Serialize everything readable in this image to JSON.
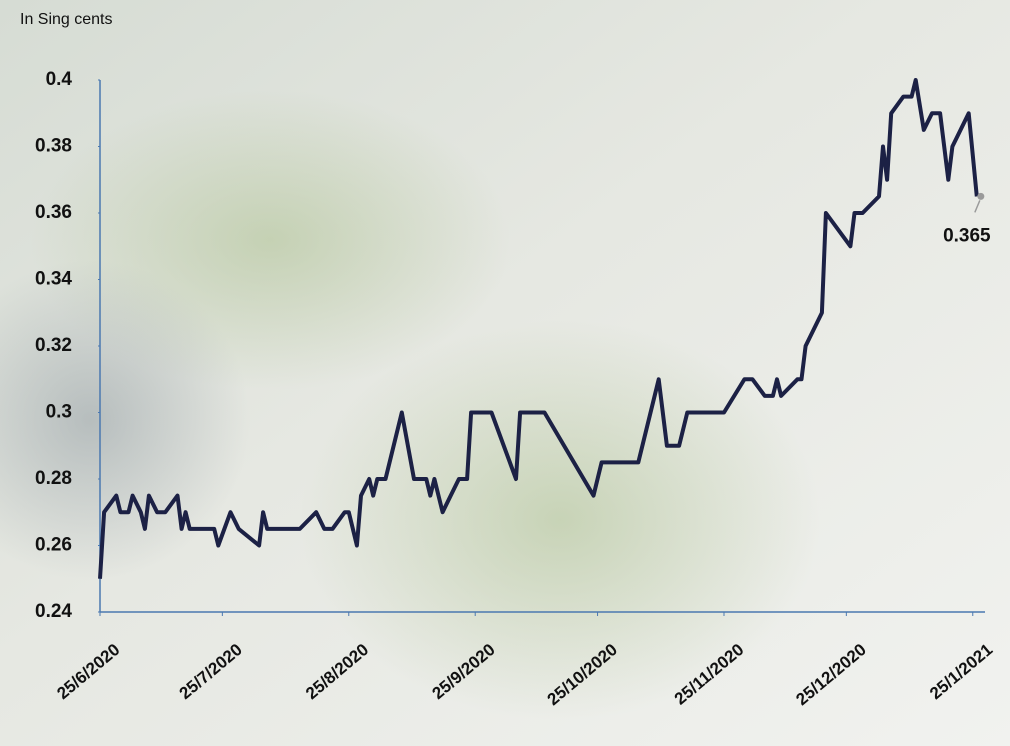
{
  "chart_data": {
    "type": "line",
    "y_label": "In Sing cents",
    "x": [
      "25/6/2020",
      "26/6/2020",
      "29/6/2020",
      "30/6/2020",
      "2/7/2020",
      "3/7/2020",
      "5/7/2020",
      "6/7/2020",
      "7/7/2020",
      "9/7/2020",
      "11/7/2020",
      "14/7/2020",
      "15/7/2020",
      "16/7/2020",
      "17/7/2020",
      "23/7/2020",
      "24/7/2020",
      "27/7/2020",
      "29/7/2020",
      "3/8/2020",
      "4/8/2020",
      "5/8/2020",
      "13/8/2020",
      "17/8/2020",
      "19/8/2020",
      "21/8/2020",
      "24/8/2020",
      "25/8/2020",
      "27/8/2020",
      "28/8/2020",
      "30/8/2020",
      "31/8/2020",
      "1/9/2020",
      "3/9/2020",
      "7/9/2020",
      "10/9/2020",
      "13/9/2020",
      "14/9/2020",
      "15/9/2020",
      "17/9/2020",
      "19/9/2020",
      "21/9/2020",
      "23/9/2020",
      "24/9/2020",
      "29/9/2020",
      "5/10/2020",
      "6/10/2020",
      "12/10/2020",
      "24/10/2020",
      "26/10/2020",
      "4/11/2020",
      "9/11/2020",
      "11/11/2020",
      "14/11/2020",
      "16/11/2020",
      "25/11/2020",
      "30/11/2020",
      "2/12/2020",
      "5/12/2020",
      "7/12/2020",
      "8/12/2020",
      "9/12/2020",
      "13/12/2020",
      "14/12/2020",
      "15/12/2020",
      "19/12/2020",
      "20/12/2020",
      "26/12/2020",
      "27/12/2020",
      "29/12/2020",
      "2/1/2021",
      "3/1/2021",
      "4/1/2021",
      "5/1/2021",
      "8/1/2021",
      "10/1/2021",
      "11/1/2021",
      "13/1/2021",
      "15/1/2021",
      "17/1/2021",
      "19/1/2021",
      "20/1/2021",
      "24/1/2021",
      "26/1/2021"
    ],
    "series": [
      {
        "color": "#1c2145",
        "values": [
          0.25,
          0.27,
          0.275,
          0.27,
          0.27,
          0.275,
          0.27,
          0.265,
          0.275,
          0.27,
          0.27,
          0.275,
          0.265,
          0.27,
          0.265,
          0.265,
          0.26,
          0.27,
          0.265,
          0.26,
          0.27,
          0.265,
          0.265,
          0.27,
          0.265,
          0.265,
          0.27,
          0.27,
          0.26,
          0.275,
          0.28,
          0.275,
          0.28,
          0.28,
          0.3,
          0.28,
          0.28,
          0.275,
          0.28,
          0.27,
          0.275,
          0.28,
          0.28,
          0.3,
          0.3,
          0.28,
          0.3,
          0.3,
          0.275,
          0.285,
          0.285,
          0.31,
          0.29,
          0.29,
          0.3,
          0.3,
          0.31,
          0.31,
          0.305,
          0.305,
          0.31,
          0.305,
          0.31,
          0.31,
          0.32,
          0.33,
          0.36,
          0.35,
          0.36,
          0.36,
          0.365,
          0.38,
          0.37,
          0.39,
          0.395,
          0.395,
          0.4,
          0.385,
          0.39,
          0.39,
          0.37,
          0.38,
          0.39,
          0.365
        ]
      }
    ],
    "data_label": "last",
    "xlim": [
      "25/6/2020",
      "28/1/2021"
    ],
    "xticks": [
      "25/6/2020",
      "25/7/2020",
      "25/8/2020",
      "25/9/2020",
      "25/10/2020",
      "25/11/2020",
      "25/12/2020",
      "25/1/2021"
    ],
    "ylim": [
      0.24,
      0.4
    ],
    "yticks": [
      0.24,
      0.26,
      0.28,
      0.3,
      0.32,
      0.34,
      0.36,
      0.38,
      0.4
    ],
    "axis_color": "#4a78b0"
  }
}
